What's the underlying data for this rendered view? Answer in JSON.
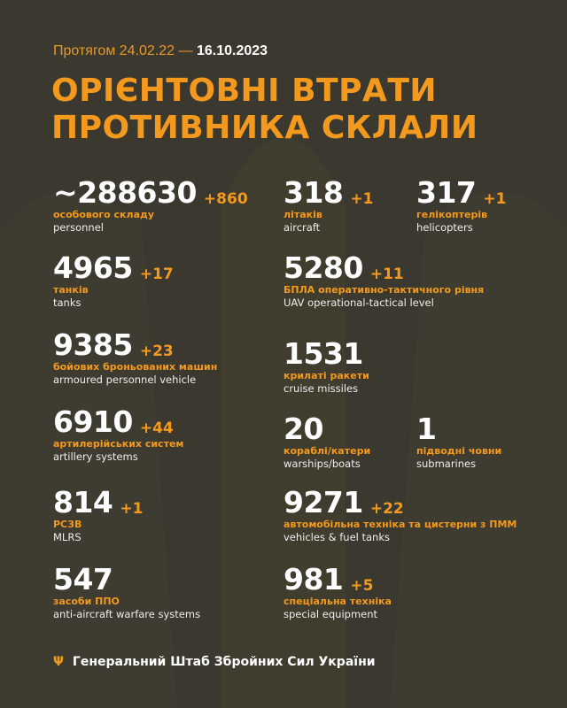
{
  "header": {
    "period_prefix": "Протягом 24.02.22 —",
    "period_end": "16.10.2023",
    "title_line1": "ОРІЄНТОВНІ ВТРАТИ",
    "title_line2": "ПРОТИВНИКА СКЛАЛИ"
  },
  "stats": [
    {
      "value": "~288630",
      "delta": "+860",
      "ua": "особового складу",
      "en": "personnel"
    },
    {
      "value": "318",
      "delta": "+1",
      "ua": "літаків",
      "en": "aircraft"
    },
    {
      "value": "317",
      "delta": "+1",
      "ua": "гелікоптерів",
      "en": "helicopters"
    },
    {
      "value": "4965",
      "delta": "+17",
      "ua": "танків",
      "en": "tanks"
    },
    {
      "value": "5280",
      "delta": "+11",
      "ua": "БПЛА оперативно-тактичного рівня",
      "en": "UAV operational-tactical level"
    },
    {
      "value": "9385",
      "delta": "+23",
      "ua": "бойових броньованих машин",
      "en": "armoured personnel vehicle"
    },
    {
      "value": "1531",
      "delta": "",
      "ua": "крилаті ракети",
      "en": "cruise missiles"
    },
    {
      "value": "6910",
      "delta": "+44",
      "ua": "артилерійських систем",
      "en": "artillery systems"
    },
    {
      "value": "20",
      "delta": "",
      "ua": "кораблі/катери",
      "en": "warships/boats"
    },
    {
      "value": "1",
      "delta": "",
      "ua": "підводні човни",
      "en": "submarines"
    },
    {
      "value": "814",
      "delta": "+1",
      "ua": "РСЗВ",
      "en": "MLRS"
    },
    {
      "value": "9271",
      "delta": "+22",
      "ua": "автомобільна техніка та цистерни з ПММ",
      "en": "vehicles & fuel tanks"
    },
    {
      "value": "547",
      "delta": "",
      "ua": "засоби ППО",
      "en": "anti-aircraft warfare systems"
    },
    {
      "value": "981",
      "delta": "+5",
      "ua": "спеціальна техніка",
      "en": "special equipment"
    }
  ],
  "footer": {
    "text": "Генеральний Штаб Збройних Сил України",
    "emblem": "trident-icon"
  },
  "colors": {
    "background": "#3b382f",
    "accent": "#f39a1e"
  }
}
